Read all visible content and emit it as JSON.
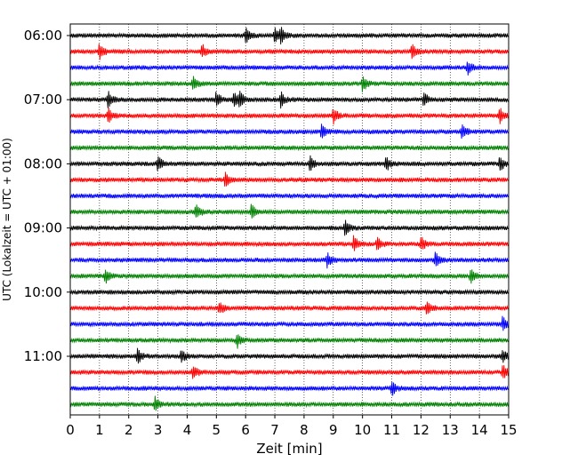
{
  "chart_data": {
    "type": "line",
    "title": "",
    "xlabel": "Zeit  [min]",
    "ylabel": "UTC (Lokalzeit = UTC + 01:00)",
    "xlim": [
      0,
      15
    ],
    "x_ticks": [
      "0",
      "1",
      "2",
      "3",
      "4",
      "5",
      "6",
      "7",
      "8",
      "9",
      "10",
      "11",
      "12",
      "13",
      "14",
      "15"
    ],
    "y_ticks": [
      "06:00",
      "07:00",
      "08:00",
      "09:00",
      "10:00",
      "11:00"
    ],
    "rows_per_hour": 4,
    "minutes_per_row": 15,
    "grid": "vertical dotted lines at each minute",
    "series_colors": [
      "#000000",
      "#ff0000",
      "#0000ff",
      "#008000"
    ],
    "traces": [
      {
        "start": "06:00",
        "events": [
          6.0,
          7.0,
          7.2
        ]
      },
      {
        "start": "06:15",
        "events": [
          1.0,
          4.5,
          11.7
        ]
      },
      {
        "start": "06:30",
        "events": [
          13.6
        ]
      },
      {
        "start": "06:45",
        "events": [
          4.2,
          10.0
        ]
      },
      {
        "start": "07:00",
        "events": [
          1.3,
          5.0,
          5.6,
          5.8,
          7.2,
          12.1
        ]
      },
      {
        "start": "07:15",
        "events": [
          1.3,
          9.0,
          14.7
        ]
      },
      {
        "start": "07:30",
        "events": [
          8.6,
          13.4
        ]
      },
      {
        "start": "07:45",
        "events": []
      },
      {
        "start": "08:00",
        "events": [
          3.0,
          8.2,
          10.8,
          14.7
        ]
      },
      {
        "start": "08:15",
        "events": [
          5.3
        ]
      },
      {
        "start": "08:30",
        "events": []
      },
      {
        "start": "08:45",
        "events": [
          4.3,
          6.2
        ]
      },
      {
        "start": "09:00",
        "events": [
          9.4
        ]
      },
      {
        "start": "09:15",
        "events": [
          9.7,
          10.5,
          12.0
        ]
      },
      {
        "start": "09:30",
        "events": [
          8.8,
          12.5
        ]
      },
      {
        "start": "09:45",
        "events": [
          1.2,
          13.7
        ]
      },
      {
        "start": "10:00",
        "events": []
      },
      {
        "start": "10:15",
        "events": [
          5.1,
          12.2
        ]
      },
      {
        "start": "10:30",
        "events": [
          14.8
        ]
      },
      {
        "start": "10:45",
        "events": [
          5.7
        ]
      },
      {
        "start": "11:00",
        "events": [
          2.3,
          3.8,
          14.8
        ]
      },
      {
        "start": "11:15",
        "events": [
          4.2,
          14.8
        ]
      },
      {
        "start": "11:30",
        "events": [
          11.0
        ]
      },
      {
        "start": "11:45",
        "events": [
          2.9
        ]
      }
    ]
  }
}
